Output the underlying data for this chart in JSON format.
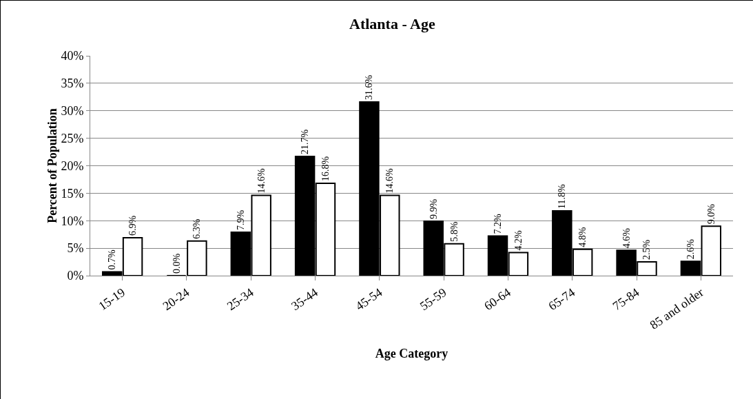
{
  "chart_data": {
    "type": "bar",
    "title": "Atlanta - Age",
    "xlabel": "Age Category",
    "ylabel": "Percent of Population",
    "categories": [
      "15-19",
      "20-24",
      "25-34",
      "35-44",
      "45-54",
      "55-59",
      "60-64",
      "65-74",
      "75-84",
      "85 and older"
    ],
    "series": [
      {
        "color": "#000000",
        "values": [
          0.7,
          0.0,
          7.9,
          21.7,
          31.6,
          9.9,
          7.2,
          11.8,
          4.6,
          2.6
        ],
        "value_labels": [
          "0.7%",
          "0.0%",
          "7.9%",
          "21.7%",
          "31.6%",
          "9.9%",
          "7.2%",
          "11.8%",
          "4.6%",
          "2.6%"
        ]
      },
      {
        "color": "#ffffff",
        "values": [
          6.9,
          6.3,
          14.6,
          16.8,
          14.6,
          5.8,
          4.2,
          4.8,
          2.5,
          9.0
        ],
        "value_labels": [
          "6.9%",
          "6.3%",
          "14.6%",
          "16.8%",
          "14.6%",
          "5.8%",
          "4.2%",
          "4.8%",
          "2.5%",
          "9.0%"
        ]
      }
    ],
    "ylim": [
      0,
      40
    ],
    "yticks": [
      {
        "value": 0,
        "label": "0%"
      },
      {
        "value": 5,
        "label": "5%"
      },
      {
        "value": 10,
        "label": "10%"
      },
      {
        "value": 15,
        "label": "15%"
      },
      {
        "value": 20,
        "label": "20%"
      },
      {
        "value": 25,
        "label": "25%"
      },
      {
        "value": 30,
        "label": "30%"
      },
      {
        "value": 35,
        "label": "35%"
      },
      {
        "value": 40,
        "label": "40%"
      }
    ],
    "grid": "y"
  }
}
